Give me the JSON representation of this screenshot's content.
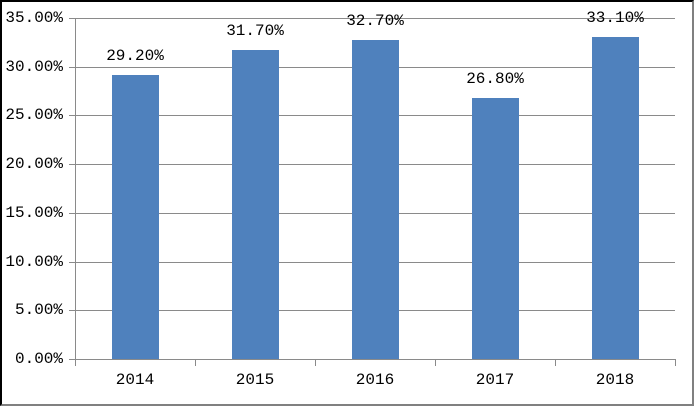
{
  "chart_data": {
    "type": "bar",
    "title": "",
    "xlabel": "",
    "ylabel": "",
    "categories": [
      "2014",
      "2015",
      "2016",
      "2017",
      "2018"
    ],
    "values": [
      29.2,
      31.7,
      32.7,
      26.8,
      33.1
    ],
    "data_labels": [
      "29.20%",
      "31.70%",
      "32.70%",
      "26.80%",
      "33.10%"
    ],
    "y_tick_labels": [
      "0.00%",
      "5.00%",
      "10.00%",
      "15.00%",
      "20.00%",
      "25.00%",
      "30.00%",
      "35.00%"
    ],
    "ylim": [
      0,
      35
    ],
    "y_tick_step": 5,
    "grid": "horizontal gridlines on",
    "legend": "none",
    "colors": {
      "bar_fill": "#4F81BD",
      "gridline": "#8a8a8a",
      "axis_line": "#8a8a8a",
      "label_text": "#000000",
      "background": "#ffffff"
    }
  }
}
